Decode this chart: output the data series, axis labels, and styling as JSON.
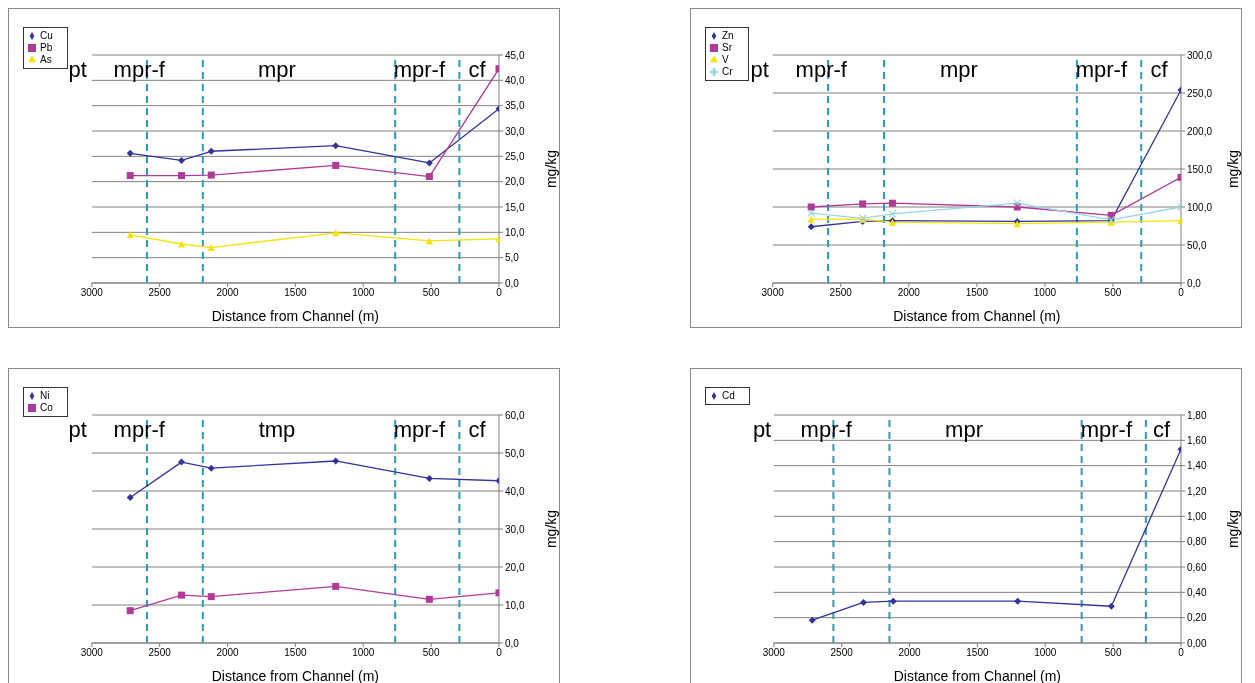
{
  "chart_data": [
    {
      "type": "line",
      "xlabel": "Distance from Channel (m)",
      "ylabel": "mg/kg",
      "x": [
        2717,
        2339,
        2120,
        1203,
        513,
        0
      ],
      "series": [
        {
          "name": "Cu",
          "color": "#333399",
          "marker": "diamond",
          "values": [
            25.6,
            24.2,
            26.0,
            27.1,
            23.7,
            34.4
          ]
        },
        {
          "name": "Pb",
          "color": "#b03a9a",
          "marker": "square",
          "values": [
            21.2,
            21.2,
            21.3,
            23.2,
            21.0,
            42.3
          ]
        },
        {
          "name": "As",
          "color": "#f5e400",
          "marker": "triangle",
          "values": [
            9.5,
            7.7,
            7.0,
            9.9,
            8.3,
            8.7
          ]
        }
      ],
      "xlim": [
        3000,
        0
      ],
      "xticks": [
        3000,
        2500,
        2000,
        1500,
        1000,
        500,
        0
      ],
      "ylim": [
        0,
        45
      ],
      "yticks": [
        {
          "value": 0,
          "label": "0,0"
        },
        {
          "value": 5,
          "label": "5,0"
        },
        {
          "value": 10,
          "label": "10,0"
        },
        {
          "value": 15,
          "label": "15,0"
        },
        {
          "value": 20,
          "label": "20,0"
        },
        {
          "value": 25,
          "label": "25,0"
        },
        {
          "value": 30,
          "label": "30,0"
        },
        {
          "value": 35,
          "label": "35,0"
        },
        {
          "value": 40,
          "label": "40,0"
        },
        {
          "value": 45,
          "label": "45,0"
        }
      ],
      "grid": "y",
      "legend": "top left",
      "ref_lines": [
        {
          "axis": "x",
          "value": 2593,
          "color": "#2a9bb8",
          "line_style": "dashed"
        },
        {
          "axis": "x",
          "value": 2182,
          "color": "#2a9bb8",
          "line_style": "dashed"
        },
        {
          "axis": "x",
          "value": 765,
          "color": "#2a9bb8",
          "line_style": "dashed"
        },
        {
          "axis": "x",
          "value": 292,
          "color": "#2a9bb8",
          "line_style": "dashed"
        }
      ],
      "annotations": [
        "pt",
        "mpr-f",
        "mpr",
        "mpr-f",
        "cf"
      ]
    },
    {
      "type": "line",
      "xlabel": "Distance from Channel (m)",
      "ylabel": "mg/kg",
      "x": [
        2717,
        2339,
        2120,
        1203,
        513,
        0
      ],
      "series": [
        {
          "name": "Zn",
          "color": "#333399",
          "marker": "diamond",
          "values": [
            74,
            81,
            82,
            81,
            82,
            254
          ]
        },
        {
          "name": "Sr",
          "color": "#b03a9a",
          "marker": "square",
          "values": [
            100,
            104,
            105,
            100,
            89,
            139
          ]
        },
        {
          "name": "V",
          "color": "#f5e400",
          "marker": "triangle",
          "values": [
            84,
            84,
            80,
            78,
            80,
            82
          ]
        },
        {
          "name": "Cr",
          "color": "#99d5e0",
          "marker": "cross",
          "values": [
            92,
            85,
            91,
            105,
            83,
            100
          ]
        }
      ],
      "xlim": [
        3000,
        0
      ],
      "xticks": [
        3000,
        2500,
        2000,
        1500,
        1000,
        500,
        0
      ],
      "ylim": [
        0,
        300
      ],
      "yticks": [
        {
          "value": 0,
          "label": "0,0"
        },
        {
          "value": 50,
          "label": "50,0"
        },
        {
          "value": 100,
          "label": "100,0"
        },
        {
          "value": 150,
          "label": "150,0"
        },
        {
          "value": 200,
          "label": "200,0"
        },
        {
          "value": 250,
          "label": "250,0"
        },
        {
          "value": 300,
          "label": "300,0"
        }
      ],
      "grid": "y",
      "legend": "top left",
      "ref_lines": [
        {
          "axis": "x",
          "value": 2593,
          "color": "#2a9bb8",
          "line_style": "dashed"
        },
        {
          "axis": "x",
          "value": 2182,
          "color": "#2a9bb8",
          "line_style": "dashed"
        },
        {
          "axis": "x",
          "value": 765,
          "color": "#2a9bb8",
          "line_style": "dashed"
        },
        {
          "axis": "x",
          "value": 292,
          "color": "#2a9bb8",
          "line_style": "dashed"
        }
      ],
      "annotations": [
        "pt",
        "mpr-f",
        "mpr",
        "mpr-f",
        "cf"
      ]
    },
    {
      "type": "line",
      "xlabel": "Distance from Channel (m)",
      "ylabel": "mg/kg",
      "x": [
        2717,
        2339,
        2120,
        1203,
        513,
        0
      ],
      "series": [
        {
          "name": "Ni",
          "color": "#333399",
          "marker": "diamond",
          "values": [
            38.3,
            47.6,
            46.0,
            47.9,
            43.3,
            42.7
          ]
        },
        {
          "name": "Co",
          "color": "#b03a9a",
          "marker": "square",
          "values": [
            8.5,
            12.6,
            12.2,
            14.9,
            11.5,
            13.2
          ]
        }
      ],
      "xlim": [
        3000,
        0
      ],
      "xticks": [
        3000,
        2500,
        2000,
        1500,
        1000,
        500,
        0
      ],
      "ylim": [
        0,
        60
      ],
      "yticks": [
        {
          "value": 0,
          "label": "0,0"
        },
        {
          "value": 10,
          "label": "10,0"
        },
        {
          "value": 20,
          "label": "20,0"
        },
        {
          "value": 30,
          "label": "30,0"
        },
        {
          "value": 40,
          "label": "40,0"
        },
        {
          "value": 50,
          "label": "50,0"
        },
        {
          "value": 60,
          "label": "60,0"
        }
      ],
      "grid": "y",
      "legend": "top left",
      "ref_lines": [
        {
          "axis": "x",
          "value": 2593,
          "color": "#2a9bb8",
          "line_style": "dashed"
        },
        {
          "axis": "x",
          "value": 2182,
          "color": "#2a9bb8",
          "line_style": "dashed"
        },
        {
          "axis": "x",
          "value": 765,
          "color": "#2a9bb8",
          "line_style": "dashed"
        },
        {
          "axis": "x",
          "value": 292,
          "color": "#2a9bb8",
          "line_style": "dashed"
        }
      ],
      "annotations": [
        "pt",
        "mpr-f",
        "tmp",
        "mpr-f",
        "cf"
      ]
    },
    {
      "type": "line",
      "xlabel": "Distance from Channel (m)",
      "ylabel": "mg/kg",
      "x": [
        2717,
        2339,
        2120,
        1203,
        513,
        0
      ],
      "series": [
        {
          "name": "Cd",
          "color": "#333399",
          "marker": "diamond",
          "values": [
            0.18,
            0.32,
            0.33,
            0.33,
            0.29,
            1.53
          ]
        }
      ],
      "xlim": [
        3000,
        0
      ],
      "xticks": [
        3000,
        2500,
        2000,
        1500,
        1000,
        500,
        0
      ],
      "ylim": [
        0,
        1.8
      ],
      "yticks": [
        {
          "value": 0,
          "label": "0,00"
        },
        {
          "value": 0.2,
          "label": "0,20"
        },
        {
          "value": 0.4,
          "label": "0,40"
        },
        {
          "value": 0.6,
          "label": "0,60"
        },
        {
          "value": 0.8,
          "label": "0,80"
        },
        {
          "value": 1.0,
          "label": "1,00"
        },
        {
          "value": 1.2,
          "label": "1,20"
        },
        {
          "value": 1.4,
          "label": "1,40"
        },
        {
          "value": 1.6,
          "label": "1,60"
        },
        {
          "value": 1.8,
          "label": "1,80"
        }
      ],
      "grid": "y",
      "legend": "top left",
      "ref_lines": [
        {
          "axis": "x",
          "value": 2561,
          "color": "#2a9bb8",
          "line_style": "dashed"
        },
        {
          "axis": "x",
          "value": 2148,
          "color": "#2a9bb8",
          "line_style": "dashed"
        },
        {
          "axis": "x",
          "value": 732,
          "color": "#2a9bb8",
          "line_style": "dashed"
        },
        {
          "axis": "x",
          "value": 259,
          "color": "#2a9bb8",
          "line_style": "dashed"
        }
      ],
      "annotations": [
        "pt",
        "mpr-f",
        "mpr",
        "mpr-f",
        "cf"
      ]
    }
  ]
}
